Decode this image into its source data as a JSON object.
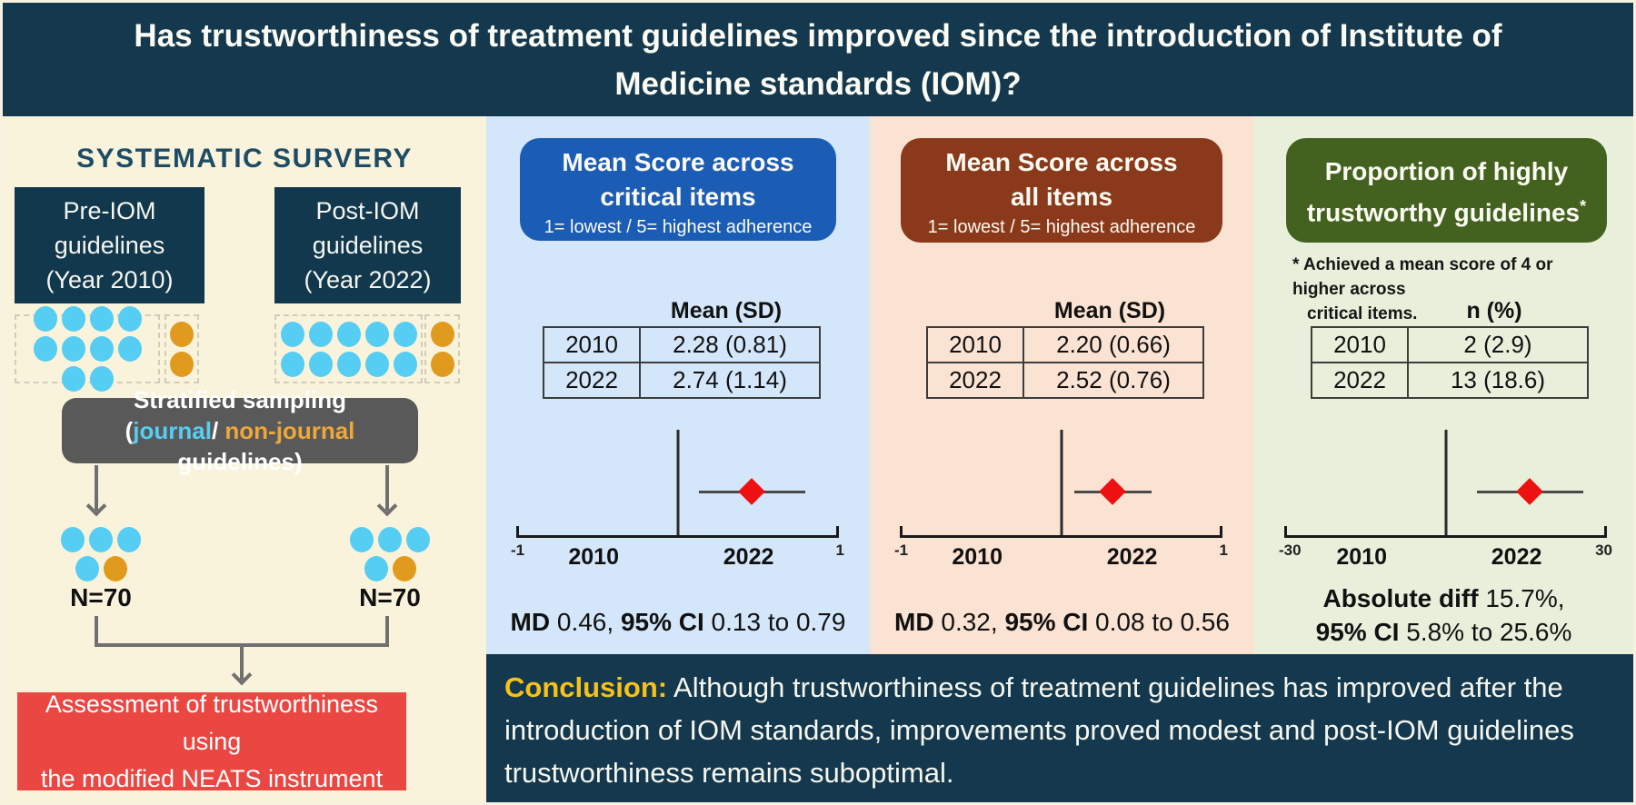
{
  "title": "Has trustworthiness of treatment guidelines improved since the introduction of Institute of Medicine standards (IOM)?",
  "colors": {
    "navy": "#14394e",
    "cream_panel": "#faf3dc",
    "blue_panel_bg": "#d4e6f9",
    "peach_panel_bg": "#fbe3d3",
    "green_panel_bg": "#e8f0db",
    "blue_header": "#1b5cb4",
    "brown_header": "#8a3a1b",
    "green_header": "#44621f",
    "red_box": "#ea4743",
    "gray_box": "#595959",
    "journal_dot": "#56cdf2",
    "non_journal_dot": "#e09a1e",
    "diamond_red": "#ee1111",
    "conclusion_gold": "#f8c117",
    "connector_gray": "#707070"
  },
  "survey": {
    "heading": "SYSTEMATIC SURVERY",
    "pre_group": {
      "lines": [
        "Pre-IOM",
        "guidelines",
        "(Year 2010)"
      ],
      "journal_dots": 10,
      "non_journal_dots": 2
    },
    "post_group": {
      "lines": [
        "Post-IOM",
        "guidelines",
        "(Year 2022)"
      ],
      "journal_dots": 10,
      "non_journal_dots": 2
    },
    "sampling": {
      "line1": "Stratified sampling",
      "open": "(",
      "journal": "journal",
      "slash": "/ ",
      "non_journal": "non-journal",
      "rest": " guidelines)"
    },
    "samples": [
      {
        "n_label": "N=70",
        "cluster": {
          "row1_journal": 3,
          "row2_journal": 1,
          "row2_non_journal": 1
        }
      },
      {
        "n_label": "N=70",
        "cluster": {
          "row1_journal": 3,
          "row2_journal": 1,
          "row2_non_journal": 1
        }
      }
    ],
    "assessment": {
      "lines": [
        "Assessment of trustworthiness using",
        "the modified NEATS instrument"
      ]
    }
  },
  "panels": [
    {
      "key": "critical",
      "header": {
        "line1": "Mean Score across",
        "line2": "critical items",
        "sup": "",
        "subtitle": "1= lowest / 5= highest adherence"
      },
      "footnote_lines": [],
      "table": {
        "header": "Mean (SD)",
        "rows": [
          [
            "2010",
            "2.28 (0.81)"
          ],
          [
            "2022",
            "2.74 (1.14)"
          ]
        ]
      },
      "result_lines": [
        [
          {
            "t": "MD ",
            "b": true
          },
          {
            "t": "0.46, ",
            "b": false
          },
          {
            "t": "95% CI ",
            "b": true
          },
          {
            "t": "0.13 to 0.79",
            "b": false
          }
        ]
      ]
    },
    {
      "key": "all",
      "header": {
        "line1": "Mean Score across",
        "line2": "all items",
        "sup": "",
        "subtitle": "1= lowest / 5= highest adherence"
      },
      "footnote_lines": [],
      "table": {
        "header": "Mean (SD)",
        "rows": [
          [
            "2010",
            "2.20 (0.66)"
          ],
          [
            "2022",
            "2.52 (0.76)"
          ]
        ]
      },
      "result_lines": [
        [
          {
            "t": "MD ",
            "b": true
          },
          {
            "t": "0.32, ",
            "b": false
          },
          {
            "t": "95% CI ",
            "b": true
          },
          {
            "t": "0.08 to 0.56",
            "b": false
          }
        ]
      ]
    },
    {
      "key": "proportion",
      "header": {
        "line1": "Proportion of highly",
        "line2": "trustworthy guidelines",
        "sup": "*",
        "subtitle": ""
      },
      "footnote_lines": [
        "* Achieved a mean score of 4 or higher across",
        "critical items."
      ],
      "table": {
        "header": "n (%)",
        "rows": [
          [
            "2010",
            "2 (2.9)"
          ],
          [
            "2022",
            "13 (18.6)"
          ]
        ]
      },
      "result_lines": [
        [
          {
            "t": "Absolute diff ",
            "b": true
          },
          {
            "t": "15.7%,",
            "b": false
          }
        ],
        [
          {
            "t": "95% CI ",
            "b": true
          },
          {
            "t": "5.8% to 25.6%",
            "b": false
          }
        ]
      ]
    }
  ],
  "chart_data": [
    {
      "type": "forest",
      "title": "Mean Score across critical items",
      "xlim": [
        -1,
        1
      ],
      "estimate": 0.46,
      "ci": [
        0.13,
        0.79
      ],
      "tick_left": "-1",
      "tick_right": "1",
      "group_left": "2010",
      "group_right": "2022",
      "table": {
        "header": "Mean (SD)",
        "rows": [
          [
            "2010",
            "2.28 (0.81)"
          ],
          [
            "2022",
            "2.74 (1.14)"
          ]
        ]
      }
    },
    {
      "type": "forest",
      "title": "Mean Score across all items",
      "xlim": [
        -1,
        1
      ],
      "estimate": 0.32,
      "ci": [
        0.08,
        0.56
      ],
      "tick_left": "-1",
      "tick_right": "1",
      "group_left": "2010",
      "group_right": "2022",
      "table": {
        "header": "Mean (SD)",
        "rows": [
          [
            "2010",
            "2.20 (0.66)"
          ],
          [
            "2022",
            "2.52 (0.76)"
          ]
        ]
      }
    },
    {
      "type": "forest",
      "title": "Proportion of highly trustworthy guidelines",
      "xlim": [
        -30,
        30
      ],
      "estimate": 15.7,
      "ci": [
        5.8,
        25.6
      ],
      "tick_left": "-30",
      "tick_right": "30",
      "group_left": "2010",
      "group_right": "2022",
      "table": {
        "header": "n (%)",
        "rows": [
          [
            "2010",
            "2 (2.9)"
          ],
          [
            "2022",
            "13 (18.6)"
          ]
        ]
      }
    }
  ],
  "conclusion": {
    "label": "Conclusion:",
    "text": " Although trustworthiness of treatment guidelines has improved after the introduction of IOM standards, improvements proved modest and post-IOM guidelines trustworthiness remains suboptimal."
  }
}
